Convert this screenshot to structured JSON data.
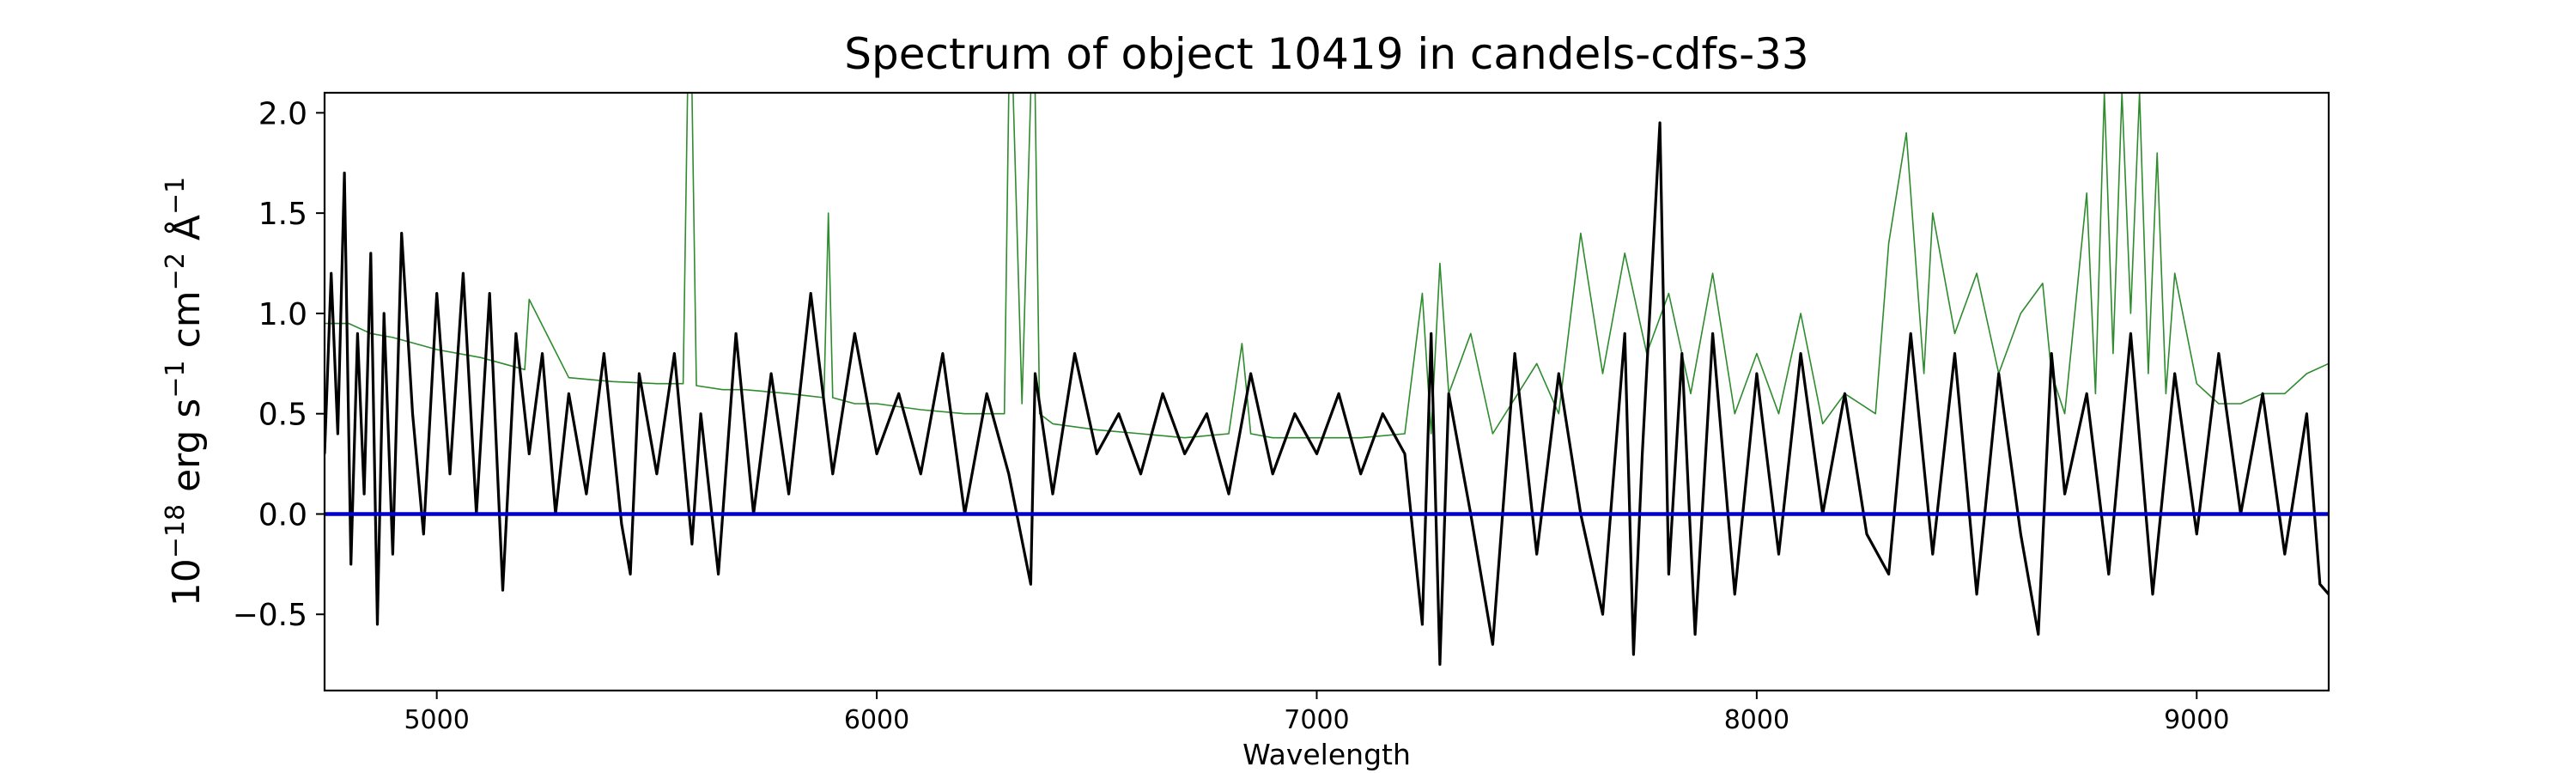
{
  "chart_data": {
    "type": "line",
    "title": "Spectrum of object 10419 in candels-cdfs-33",
    "ylabel": {
      "prefix": "10",
      "exp1": "−18",
      "mid": " erg s",
      "exp2": "−1",
      "mid2": " cm",
      "exp3": "−2",
      "mid3": " Å",
      "exp4": "−1"
    },
    "xlabel": "Wavelength",
    "xlim": [
      4745,
      9300
    ],
    "ylim": [
      -0.88,
      2.1
    ],
    "xticks": [
      5000,
      6000,
      7000,
      8000,
      9000
    ],
    "xtick_labels": [
      "5000",
      "6000",
      "7000",
      "8000",
      "9000"
    ],
    "yticks": [
      -0.5,
      0.0,
      0.5,
      1.0,
      1.5,
      2.0
    ],
    "ytick_labels": [
      "−0.5",
      "0.0",
      "0.5",
      "1.0",
      "1.5",
      "2.0"
    ],
    "grid": false,
    "colors": {
      "flux": "#000000",
      "sky": "#2e8b2e",
      "zero": "#0000cc"
    },
    "series": [
      {
        "role": "flux",
        "x": [
          4745,
          4760,
          4775,
          4790,
          4805,
          4820,
          4835,
          4850,
          4865,
          4880,
          4900,
          4920,
          4945,
          4970,
          5000,
          5030,
          5060,
          5090,
          5120,
          5150,
          5180,
          5210,
          5240,
          5270,
          5300,
          5340,
          5380,
          5420,
          5440,
          5460,
          5500,
          5540,
          5580,
          5600,
          5640,
          5680,
          5720,
          5760,
          5800,
          5850,
          5900,
          5950,
          6000,
          6050,
          6100,
          6150,
          6200,
          6250,
          6300,
          6350,
          6360,
          6400,
          6450,
          6500,
          6550,
          6600,
          6650,
          6700,
          6750,
          6800,
          6850,
          6900,
          6950,
          7000,
          7050,
          7100,
          7150,
          7200,
          7240,
          7260,
          7280,
          7300,
          7350,
          7400,
          7450,
          7500,
          7550,
          7600,
          7650,
          7700,
          7720,
          7740,
          7780,
          7800,
          7830,
          7860,
          7900,
          7950,
          8000,
          8050,
          8100,
          8150,
          8200,
          8250,
          8300,
          8350,
          8400,
          8450,
          8500,
          8550,
          8600,
          8640,
          8670,
          8700,
          8750,
          8800,
          8850,
          8900,
          8950,
          9000,
          9050,
          9100,
          9150,
          9200,
          9250,
          9280,
          9300
        ],
        "y": [
          0.3,
          1.2,
          0.4,
          1.7,
          -0.25,
          0.9,
          0.1,
          1.3,
          -0.55,
          1.0,
          -0.2,
          1.4,
          0.5,
          -0.1,
          1.1,
          0.2,
          1.2,
          0.0,
          1.1,
          -0.38,
          0.9,
          0.3,
          0.8,
          0.0,
          0.6,
          0.1,
          0.8,
          -0.05,
          -0.3,
          0.7,
          0.2,
          0.8,
          -0.15,
          0.5,
          -0.3,
          0.9,
          0.0,
          0.7,
          0.1,
          1.1,
          0.2,
          0.9,
          0.3,
          0.6,
          0.2,
          0.8,
          0.0,
          0.6,
          0.2,
          -0.35,
          0.7,
          0.1,
          0.8,
          0.3,
          0.5,
          0.2,
          0.6,
          0.3,
          0.5,
          0.1,
          0.7,
          0.2,
          0.5,
          0.3,
          0.6,
          0.2,
          0.5,
          0.3,
          -0.55,
          0.9,
          -0.75,
          0.6,
          0.0,
          -0.65,
          0.8,
          -0.2,
          0.7,
          0.0,
          -0.5,
          0.9,
          -0.7,
          0.3,
          1.95,
          -0.3,
          0.8,
          -0.6,
          0.9,
          -0.4,
          0.7,
          -0.2,
          0.8,
          0.0,
          0.6,
          -0.1,
          -0.3,
          0.9,
          -0.2,
          0.8,
          -0.4,
          0.7,
          -0.1,
          -0.6,
          0.8,
          0.1,
          0.6,
          -0.3,
          0.9,
          -0.4,
          0.7,
          -0.1,
          0.8,
          0.0,
          0.6,
          -0.2,
          0.5,
          -0.35,
          -0.4
        ]
      },
      {
        "role": "sky",
        "x": [
          4745,
          4800,
          4850,
          4900,
          4950,
          5000,
          5100,
          5200,
          5210,
          5300,
          5400,
          5500,
          5560,
          5570,
          5580,
          5590,
          5650,
          5700,
          5800,
          5880,
          5890,
          5900,
          5950,
          6000,
          6100,
          6200,
          6290,
          6300,
          6310,
          6330,
          6350,
          6360,
          6370,
          6400,
          6500,
          6600,
          6700,
          6800,
          6830,
          6850,
          6900,
          7000,
          7100,
          7200,
          7240,
          7260,
          7280,
          7300,
          7350,
          7400,
          7500,
          7550,
          7600,
          7650,
          7700,
          7750,
          7800,
          7850,
          7900,
          7950,
          8000,
          8050,
          8100,
          8150,
          8200,
          8270,
          8300,
          8340,
          8380,
          8400,
          8450,
          8500,
          8550,
          8600,
          8650,
          8670,
          8700,
          8750,
          8770,
          8790,
          8810,
          8830,
          8850,
          8870,
          8890,
          8910,
          8930,
          8950,
          9000,
          9050,
          9100,
          9150,
          9200,
          9250,
          9300
        ],
        "y": [
          0.95,
          0.95,
          0.9,
          0.88,
          0.85,
          0.82,
          0.78,
          0.72,
          1.07,
          0.68,
          0.66,
          0.65,
          0.65,
          2.1,
          2.1,
          0.64,
          0.62,
          0.62,
          0.6,
          0.58,
          1.5,
          0.58,
          0.55,
          0.55,
          0.52,
          0.5,
          0.5,
          2.1,
          2.1,
          0.55,
          2.1,
          2.1,
          0.5,
          0.45,
          0.42,
          0.4,
          0.38,
          0.4,
          0.85,
          0.4,
          0.38,
          0.38,
          0.38,
          0.4,
          1.1,
          0.4,
          1.25,
          0.6,
          0.9,
          0.4,
          0.75,
          0.5,
          1.4,
          0.7,
          1.3,
          0.8,
          1.1,
          0.6,
          1.2,
          0.5,
          0.8,
          0.5,
          1.0,
          0.45,
          0.6,
          0.5,
          1.35,
          1.9,
          0.7,
          1.5,
          0.9,
          1.2,
          0.7,
          1.0,
          1.15,
          0.7,
          0.5,
          1.6,
          0.6,
          2.1,
          0.8,
          2.1,
          1.0,
          2.1,
          0.7,
          1.8,
          0.6,
          1.2,
          0.65,
          0.55,
          0.55,
          0.6,
          0.6,
          0.7,
          0.75
        ]
      },
      {
        "role": "zero",
        "x": [
          4745,
          9300
        ],
        "y": [
          0,
          0
        ]
      }
    ]
  }
}
